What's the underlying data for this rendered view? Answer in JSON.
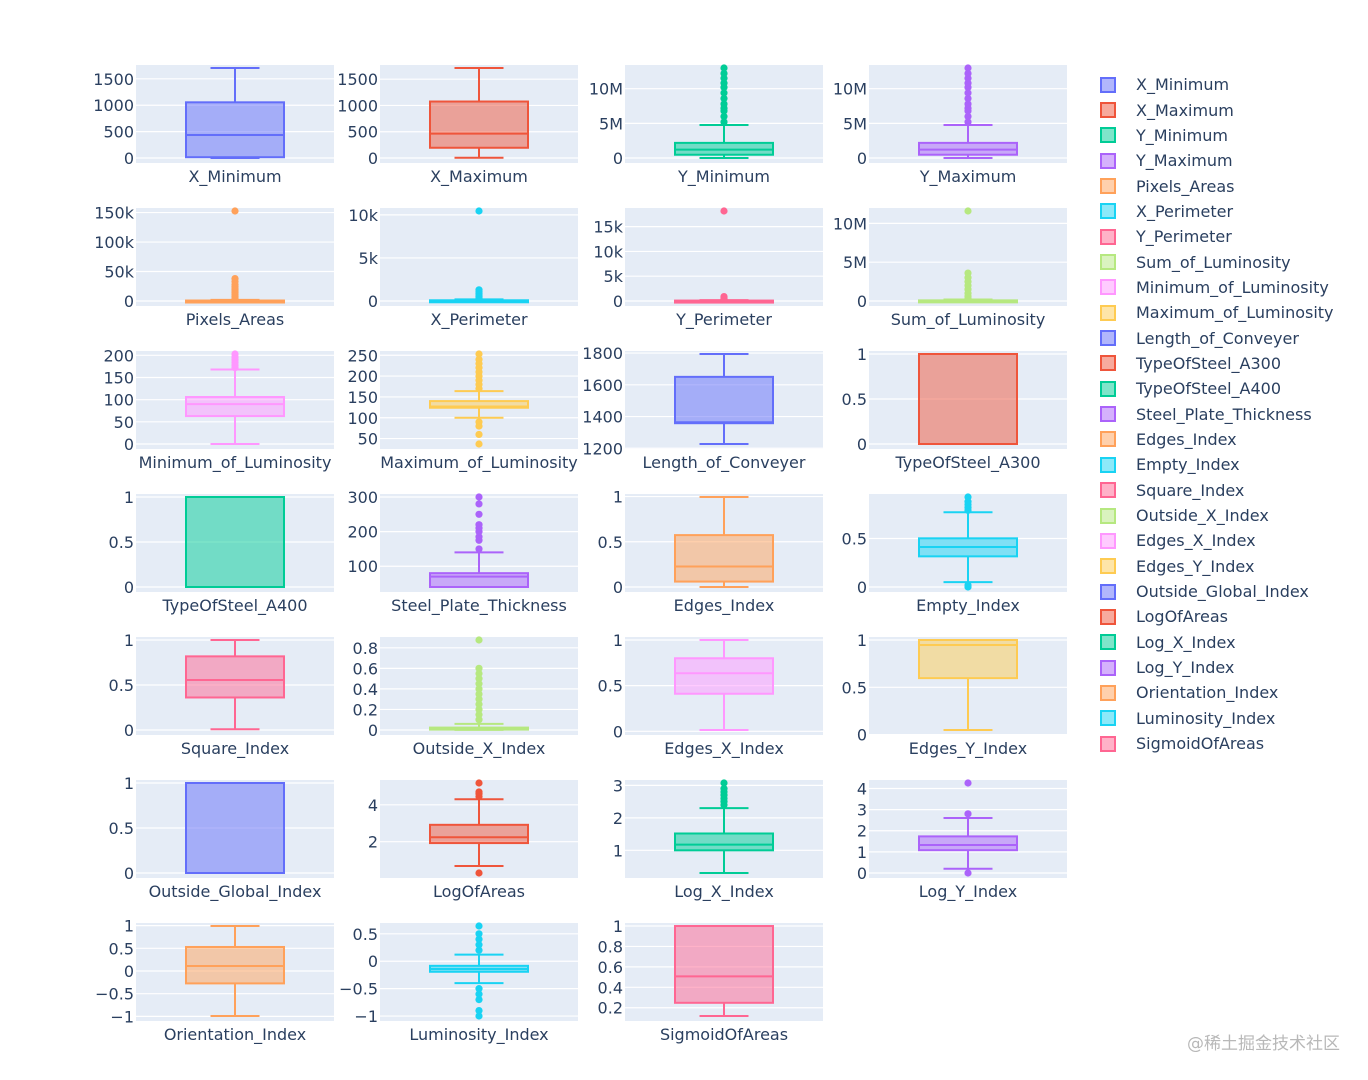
{
  "chart_data": {
    "type": "box",
    "grid": true,
    "legend_position": "right",
    "series": [
      {
        "name": "X_Minimum",
        "color": "#636efa",
        "ylim": [
          0,
          1705
        ],
        "ticks": [
          0,
          500,
          1000,
          1500
        ],
        "tick_labels": [
          "0",
          "500",
          "1000",
          "1500"
        ],
        "box": {
          "lower": 0,
          "q1": 15,
          "median": 435,
          "q3": 1055,
          "upper": 1705
        },
        "outliers": []
      },
      {
        "name": "X_Maximum",
        "color": "#ef553b",
        "ylim": [
          0,
          1713
        ],
        "ticks": [
          0,
          500,
          1000,
          1500
        ],
        "tick_labels": [
          "0",
          "500",
          "1000",
          "1500"
        ],
        "box": {
          "lower": 4,
          "q1": 195,
          "median": 465,
          "q3": 1075,
          "upper": 1713
        },
        "outliers": []
      },
      {
        "name": "Y_Minimum",
        "color": "#00cc96",
        "ylim": [
          0,
          12987661
        ],
        "ticks": [
          0,
          5000000,
          10000000
        ],
        "tick_labels": [
          "0",
          "5M",
          "10M"
        ],
        "box": {
          "lower": 6712,
          "q1": 471253,
          "median": 1204128,
          "q3": 2183073,
          "upper": 4760000
        },
        "outliers": [
          5200000,
          6000000,
          6800000,
          7200000,
          7800000,
          8600000,
          9400000,
          10200000,
          10800000,
          11500000,
          12200000,
          12987661
        ]
      },
      {
        "name": "Y_Maximum",
        "color": "#ab63fa",
        "ylim": [
          0,
          12987692
        ],
        "ticks": [
          0,
          5000000,
          10000000
        ],
        "tick_labels": [
          "0",
          "5M",
          "10M"
        ],
        "box": {
          "lower": 6724,
          "q1": 471281,
          "median": 1204136,
          "q3": 2183084,
          "upper": 4760000
        },
        "outliers": [
          5200000,
          6000000,
          6800000,
          7200000,
          7800000,
          8600000,
          9400000,
          10200000,
          10800000,
          11500000,
          12200000,
          12987692
        ]
      },
      {
        "name": "Pixels_Areas",
        "color": "#ffa15a",
        "ylim": [
          0,
          152655
        ],
        "ticks": [
          0,
          50000,
          100000,
          150000
        ],
        "tick_labels": [
          "0",
          "50k",
          "100k",
          "150k"
        ],
        "box": {
          "lower": 2,
          "q1": 84,
          "median": 174,
          "q3": 822,
          "upper": 1900
        },
        "outliers": [
          3000,
          5000,
          8000,
          11000,
          14000,
          17000,
          20000,
          24000,
          28000,
          33000,
          38000,
          152655
        ]
      },
      {
        "name": "X_Perimeter",
        "color": "#19d3f3",
        "ylim": [
          0,
          10449
        ],
        "ticks": [
          0,
          5000,
          10000
        ],
        "tick_labels": [
          "0",
          "5k",
          "10k"
        ],
        "box": {
          "lower": 2,
          "q1": 15,
          "median": 26,
          "q3": 84,
          "upper": 186
        },
        "outliers": [
          250,
          350,
          500,
          700,
          900,
          1100,
          1300,
          10449
        ]
      },
      {
        "name": "Y_Perimeter",
        "color": "#ff6692",
        "ylim": [
          0,
          18152
        ],
        "ticks": [
          0,
          5000,
          10000,
          15000
        ],
        "tick_labels": [
          "0",
          "5k",
          "10k",
          "15k"
        ],
        "box": {
          "lower": 1,
          "q1": 13,
          "median": 25,
          "q3": 83,
          "upper": 189
        },
        "outliers": [
          250,
          350,
          500,
          700,
          900,
          18152
        ]
      },
      {
        "name": "Sum_of_Luminosity",
        "color": "#b6e880",
        "ylim": [
          0,
          11591414
        ],
        "ticks": [
          0,
          5000000,
          10000000
        ],
        "tick_labels": [
          "0",
          "5M",
          "10M"
        ],
        "box": {
          "lower": 250,
          "q1": 9522,
          "median": 19202,
          "q3": 83011,
          "upper": 192000
        },
        "outliers": [
          300000,
          600000,
          1000000,
          1500000,
          2000000,
          2500000,
          3000000,
          3600000,
          11591414
        ]
      },
      {
        "name": "Minimum_of_Luminosity",
        "color": "#ff97ff",
        "ylim": [
          0,
          203
        ],
        "ticks": [
          0,
          50,
          100,
          150,
          200
        ],
        "tick_labels": [
          "0",
          "50",
          "100",
          "150",
          "200"
        ],
        "box": {
          "lower": 0,
          "q1": 63,
          "median": 90,
          "q3": 106,
          "upper": 168
        },
        "outliers": [
          172,
          178,
          184,
          190,
          196,
          203
        ]
      },
      {
        "name": "Maximum_of_Luminosity",
        "color": "#fecb52",
        "ylim": [
          37,
          253
        ],
        "ticks": [
          50,
          100,
          150,
          200,
          250
        ],
        "tick_labels": [
          "50",
          "100",
          "150",
          "200",
          "250"
        ],
        "box": {
          "lower": 100,
          "q1": 124,
          "median": 127,
          "q3": 140,
          "upper": 164
        },
        "outliers": [
          37,
          60,
          80,
          90,
          170,
          180,
          190,
          200,
          210,
          220,
          230,
          240,
          253
        ]
      },
      {
        "name": "Length_of_Conveyer",
        "color": "#636efa",
        "ylim": [
          1227,
          1794
        ],
        "ticks": [
          1200,
          1400,
          1600,
          1800
        ],
        "tick_labels": [
          "1200",
          "1400",
          "1600",
          "1800"
        ],
        "box": {
          "lower": 1227,
          "q1": 1358,
          "median": 1364,
          "q3": 1650,
          "upper": 1794
        },
        "outliers": []
      },
      {
        "name": "TypeOfSteel_A300",
        "color": "#ef553b",
        "ylim": [
          0,
          1
        ],
        "ticks": [
          0,
          0.5,
          1
        ],
        "tick_labels": [
          "0",
          "0.5",
          "1"
        ],
        "box": {
          "lower": 0,
          "q1": 0,
          "median": 0,
          "q3": 1,
          "upper": 1
        },
        "outliers": []
      },
      {
        "name": "TypeOfSteel_A400",
        "color": "#00cc96",
        "ylim": [
          0,
          1
        ],
        "ticks": [
          0,
          0.5,
          1
        ],
        "tick_labels": [
          "0",
          "0.5",
          "1"
        ],
        "box": {
          "lower": 0,
          "q1": 0,
          "median": 1,
          "q3": 1,
          "upper": 1
        },
        "outliers": []
      },
      {
        "name": "Steel_Plate_Thickness",
        "color": "#ab63fa",
        "ylim": [
          40,
          300
        ],
        "ticks": [
          100,
          200,
          300
        ],
        "tick_labels": [
          "100",
          "200",
          "300"
        ],
        "box": {
          "lower": 40,
          "q1": 40,
          "median": 70,
          "q3": 80,
          "upper": 140
        },
        "outliers": [
          150,
          175,
          185,
          200,
          210,
          220,
          250,
          280,
          300
        ]
      },
      {
        "name": "Edges_Index",
        "color": "#ffa15a",
        "ylim": [
          0,
          0.9952
        ],
        "ticks": [
          0,
          0.5,
          1
        ],
        "tick_labels": [
          "0",
          "0.5",
          "1"
        ],
        "box": {
          "lower": 0,
          "q1": 0.06,
          "median": 0.2273,
          "q3": 0.5738,
          "upper": 0.9952
        },
        "outliers": []
      },
      {
        "name": "Empty_Index",
        "color": "#19d3f3",
        "ylim": [
          0,
          0.9275
        ],
        "ticks": [
          0,
          0.5
        ],
        "tick_labels": [
          "0",
          "0.5"
        ],
        "box": {
          "lower": 0.05,
          "q1": 0.3158,
          "median": 0.4121,
          "q3": 0.5016,
          "upper": 0.77
        },
        "outliers": [
          0,
          0.02,
          0.79,
          0.82,
          0.85,
          0.88,
          0.9275
        ]
      },
      {
        "name": "Square_Index",
        "color": "#ff6692",
        "ylim": [
          0,
          1
        ],
        "ticks": [
          0,
          0.5,
          1
        ],
        "tick_labels": [
          "0",
          "0.5",
          "1"
        ],
        "box": {
          "lower": 0.0083,
          "q1": 0.3613,
          "median": 0.5556,
          "q3": 0.8182,
          "upper": 1
        },
        "outliers": []
      },
      {
        "name": "Outside_X_Index",
        "color": "#b6e880",
        "ylim": [
          0,
          0.8759
        ],
        "ticks": [
          0,
          0.2,
          0.4,
          0.6,
          0.8
        ],
        "tick_labels": [
          "0",
          "0.2",
          "0.4",
          "0.6",
          "0.8"
        ],
        "box": {
          "lower": 0.0015,
          "q1": 0.0066,
          "median": 0.0101,
          "q3": 0.0235,
          "upper": 0.06
        },
        "outliers": [
          0.1,
          0.15,
          0.2,
          0.25,
          0.3,
          0.35,
          0.4,
          0.45,
          0.5,
          0.55,
          0.6,
          0.8759
        ]
      },
      {
        "name": "Edges_X_Index",
        "color": "#ff97ff",
        "ylim": [
          0.0144,
          1
        ],
        "ticks": [
          0,
          0.5,
          1
        ],
        "tick_labels": [
          "0",
          "0.5",
          "1"
        ],
        "box": {
          "lower": 0.0144,
          "q1": 0.4114,
          "median": 0.6364,
          "q3": 0.8,
          "upper": 1
        },
        "outliers": []
      },
      {
        "name": "Edges_Y_Index",
        "color": "#fecb52",
        "ylim": [
          0.0484,
          1
        ],
        "ticks": [
          0,
          0.5,
          1
        ],
        "tick_labels": [
          "0",
          "0.5",
          "1"
        ],
        "box": {
          "lower": 0.0484,
          "q1": 0.5968,
          "median": 0.9474,
          "q3": 1,
          "upper": 1
        },
        "outliers": []
      },
      {
        "name": "Outside_Global_Index",
        "color": "#636efa",
        "ylim": [
          0,
          1
        ],
        "ticks": [
          0,
          0.5,
          1
        ],
        "tick_labels": [
          "0",
          "0.5",
          "1"
        ],
        "box": {
          "lower": 0,
          "q1": 0,
          "median": 1,
          "q3": 1,
          "upper": 1
        },
        "outliers": []
      },
      {
        "name": "LogOfAreas",
        "color": "#ef553b",
        "ylim": [
          0.301,
          5.1837
        ],
        "ticks": [
          2,
          4
        ],
        "tick_labels": [
          "2",
          "4"
        ],
        "box": {
          "lower": 0.68,
          "q1": 1.9243,
          "median": 2.2406,
          "q3": 2.9149,
          "upper": 4.3
        },
        "outliers": [
          0.301,
          4.45,
          4.6,
          4.7,
          5.1837
        ]
      },
      {
        "name": "Log_X_Index",
        "color": "#00cc96",
        "ylim": [
          0.301,
          3.0741
        ],
        "ticks": [
          1,
          2,
          3
        ],
        "tick_labels": [
          "1",
          "2",
          "3"
        ],
        "box": {
          "lower": 0.301,
          "q1": 1,
          "median": 1.1761,
          "q3": 1.5185,
          "upper": 2.3
        },
        "outliers": [
          2.4,
          2.5,
          2.6,
          2.7,
          2.8,
          2.9,
          3.0741
        ]
      },
      {
        "name": "Log_Y_Index",
        "color": "#ab63fa",
        "ylim": [
          0,
          4.2587
        ],
        "ticks": [
          0,
          1,
          2,
          3,
          4
        ],
        "tick_labels": [
          "0",
          "1",
          "2",
          "3",
          "4"
        ],
        "box": {
          "lower": 0.2,
          "q1": 1.0792,
          "median": 1.3222,
          "q3": 1.7324,
          "upper": 2.6
        },
        "outliers": [
          0,
          2.8,
          4.2587
        ]
      },
      {
        "name": "Orientation_Index",
        "color": "#ffa15a",
        "ylim": [
          -0.991,
          0.9917
        ],
        "ticks": [
          -1,
          -0.5,
          0,
          0.5,
          1
        ],
        "tick_labels": [
          "−1",
          "−0.5",
          "0",
          "0.5",
          "1"
        ],
        "box": {
          "lower": -0.991,
          "q1": -0.2727,
          "median": 0.1111,
          "q3": 0.5294,
          "upper": 0.9917
        },
        "outliers": []
      },
      {
        "name": "Luminosity_Index",
        "color": "#19d3f3",
        "ylim": [
          -0.9989,
          0.6421
        ],
        "ticks": [
          -1,
          -0.5,
          0,
          0.5
        ],
        "tick_labels": [
          "−1",
          "−0.5",
          "0",
          "0.5"
        ],
        "box": {
          "lower": -0.4,
          "q1": -0.1925,
          "median": -0.1426,
          "q3": -0.084,
          "upper": 0.12
        },
        "outliers": [
          -0.9989,
          -0.9,
          -0.7,
          -0.6,
          -0.5,
          0.2,
          0.3,
          0.4,
          0.5,
          0.6421
        ]
      },
      {
        "name": "SigmoidOfAreas",
        "color": "#ff6692",
        "ylim": [
          0.119,
          1
        ],
        "ticks": [
          0.2,
          0.4,
          0.6,
          0.8,
          1
        ],
        "tick_labels": [
          "0.2",
          "0.4",
          "0.6",
          "0.8",
          "1"
        ],
        "box": {
          "lower": 0.119,
          "q1": 0.2482,
          "median": 0.5063,
          "q3": 0.9998,
          "upper": 1
        },
        "outliers": []
      }
    ]
  },
  "watermark": "@稀土掘金技术社区"
}
